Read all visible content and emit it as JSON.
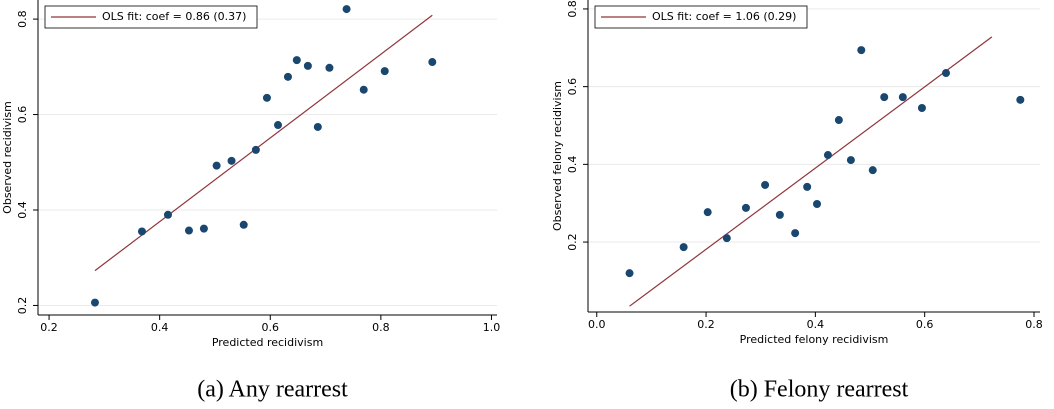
{
  "chart_data": [
    {
      "type": "scatter",
      "caption": "(a) Any rearrest",
      "x_label": "Predicted recidivism",
      "y_label": "Observed recidivism",
      "xlim": [
        0.18,
        1.01
      ],
      "ylim": [
        0.18,
        0.84
      ],
      "xticks": [
        0.2,
        0.4,
        0.6,
        0.8,
        {
          "value": 1.0,
          "label": "1.0"
        }
      ],
      "yticks": [
        0.2,
        0.4,
        0.6,
        0.8
      ],
      "grid": true,
      "points": {
        "color": "#1a476f",
        "x": [
          0.283,
          0.368,
          0.415,
          0.453,
          0.48,
          0.503,
          0.53,
          0.552,
          0.574,
          0.594,
          0.614,
          0.632,
          0.648,
          0.668,
          0.686,
          0.707,
          0.738,
          0.769,
          0.807,
          0.893
        ],
        "y": [
          0.206,
          0.355,
          0.39,
          0.357,
          0.361,
          0.493,
          0.503,
          0.369,
          0.526,
          0.635,
          0.578,
          0.679,
          0.714,
          0.702,
          0.574,
          0.698,
          0.821,
          0.652,
          0.691,
          0.71
        ]
      },
      "fit_line": {
        "name": "OLS fit: coef = 0.86 (0.37)",
        "color": "#90353b",
        "x": [
          0.283,
          0.893
        ],
        "y": [
          0.273,
          0.808
        ]
      }
    },
    {
      "type": "scatter",
      "caption": "(b) Felony rearrest",
      "x_label": "Predicted felony recidivism",
      "y_label": "Observed felony recidivism",
      "xlim": [
        -0.016,
        0.811
      ],
      "ylim": [
        0.02,
        0.823
      ],
      "xticks": [
        {
          "value": 0,
          "label": "0.0"
        },
        0.2,
        0.4,
        0.6,
        0.8
      ],
      "yticks": [
        0.2,
        0.4,
        0.6,
        0.8
      ],
      "grid": true,
      "points": {
        "color": "#1a476f",
        "x": [
          0.06,
          0.159,
          0.203,
          0.238,
          0.273,
          0.308,
          0.335,
          0.363,
          0.385,
          0.403,
          0.423,
          0.443,
          0.465,
          0.484,
          0.505,
          0.526,
          0.56,
          0.595,
          0.639,
          0.775
        ],
        "y": [
          0.12,
          0.187,
          0.277,
          0.21,
          0.288,
          0.347,
          0.27,
          0.223,
          0.342,
          0.298,
          0.424,
          0.514,
          0.411,
          0.694,
          0.385,
          0.573,
          0.573,
          0.545,
          0.635,
          0.566
        ]
      },
      "fit_line": {
        "name": "OLS fit: coef = 1.06 (0.29)",
        "color": "#90353b",
        "x": [
          0.06,
          0.723
        ],
        "y": [
          0.035,
          0.728
        ]
      }
    }
  ]
}
